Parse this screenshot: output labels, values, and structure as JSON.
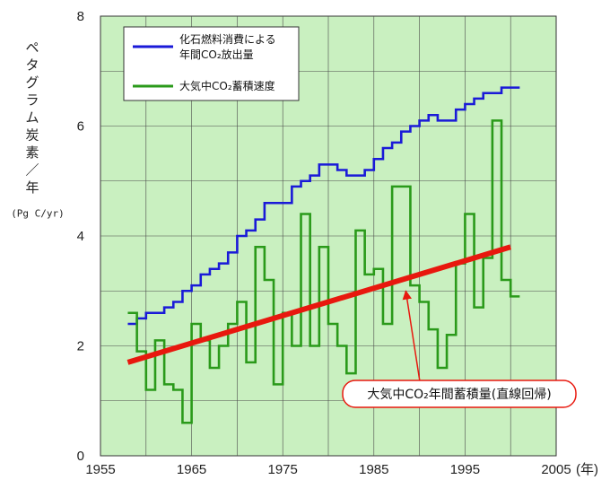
{
  "chart_data": {
    "type": "line",
    "ylabel": "ペタグラム炭素／年",
    "yunit": "(Pg C/yr)",
    "xunit": "(年)",
    "xlim": [
      1955,
      2005
    ],
    "ylim": [
      0,
      8
    ],
    "xticks": [
      1955,
      1965,
      1975,
      1985,
      1995,
      2005
    ],
    "yticks": [
      0,
      2,
      4,
      6,
      8
    ],
    "grid": true,
    "legend_position": "top-left",
    "series": [
      {
        "name": "化石燃料消費による\n年間CO₂放出量",
        "color": "#1a1ad8",
        "step": true,
        "x": [
          1958,
          1959,
          1960,
          1961,
          1962,
          1963,
          1964,
          1965,
          1966,
          1967,
          1968,
          1969,
          1970,
          1971,
          1972,
          1973,
          1974,
          1975,
          1976,
          1977,
          1978,
          1979,
          1980,
          1981,
          1982,
          1983,
          1984,
          1985,
          1986,
          1987,
          1988,
          1989,
          1990,
          1991,
          1992,
          1993,
          1994,
          1995,
          1996,
          1997,
          1998,
          1999,
          2000
        ],
        "y": [
          2.4,
          2.5,
          2.6,
          2.6,
          2.7,
          2.8,
          3.0,
          3.1,
          3.3,
          3.4,
          3.5,
          3.7,
          4.0,
          4.1,
          4.3,
          4.6,
          4.6,
          4.6,
          4.9,
          5.0,
          5.1,
          5.3,
          5.3,
          5.2,
          5.1,
          5.1,
          5.2,
          5.4,
          5.6,
          5.7,
          5.9,
          6.0,
          6.1,
          6.2,
          6.1,
          6.1,
          6.3,
          6.4,
          6.5,
          6.6,
          6.6,
          6.7,
          6.7
        ]
      },
      {
        "name": "大気中CO₂蓄積速度",
        "color": "#2a9a1a",
        "step": true,
        "x": [
          1958,
          1959,
          1960,
          1961,
          1962,
          1963,
          1964,
          1965,
          1966,
          1967,
          1968,
          1969,
          1970,
          1971,
          1972,
          1973,
          1974,
          1975,
          1976,
          1977,
          1978,
          1979,
          1980,
          1981,
          1982,
          1983,
          1984,
          1985,
          1986,
          1987,
          1988,
          1989,
          1990,
          1991,
          1992,
          1993,
          1994,
          1995,
          1996,
          1997,
          1998,
          1999,
          2000
        ],
        "y": [
          2.6,
          1.9,
          1.2,
          2.1,
          1.3,
          1.2,
          0.6,
          2.4,
          2.1,
          1.6,
          2.0,
          2.4,
          2.8,
          1.7,
          3.8,
          3.2,
          1.3,
          2.6,
          2.0,
          4.4,
          2.0,
          3.8,
          2.4,
          2.0,
          1.5,
          4.1,
          3.3,
          3.4,
          2.4,
          4.9,
          4.9,
          3.1,
          2.8,
          2.3,
          1.6,
          2.2,
          3.5,
          4.4,
          2.7,
          3.6,
          6.1,
          3.2,
          2.9
        ]
      },
      {
        "name": "大気中CO₂年間蓄積量(直線回帰)",
        "color": "#e8180e",
        "x": [
          1958,
          2000
        ],
        "y": [
          1.7,
          3.8
        ]
      }
    ],
    "annotations": [
      {
        "text": "大気中CO₂年間蓄積量(直線回帰)",
        "arrow_to": [
          1988.5,
          3.0
        ]
      }
    ]
  }
}
